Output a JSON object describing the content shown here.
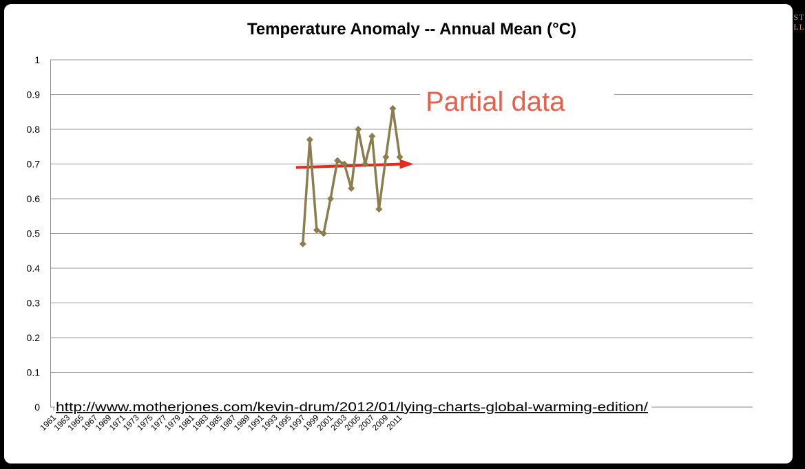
{
  "chart_data": {
    "type": "line",
    "title": "Temperature Anomaly -- Annual Mean (°C)",
    "xlabel": "",
    "ylabel": "",
    "ylim": [
      0,
      1
    ],
    "yticks": [
      "0",
      "0.1",
      "0.2",
      "0.3",
      "0.4",
      "0.5",
      "0.6",
      "0.7",
      "0.8",
      "0.9",
      "1"
    ],
    "categories": [
      "1961",
      "1962",
      "1963",
      "1964",
      "1965",
      "1966",
      "1967",
      "1968",
      "1969",
      "1970",
      "1971",
      "1972",
      "1973",
      "1974",
      "1975",
      "1976",
      "1977",
      "1978",
      "1979",
      "1980",
      "1981",
      "1982",
      "1983",
      "1984",
      "1985",
      "1986",
      "1987",
      "1988",
      "1989",
      "1990",
      "1991",
      "1992",
      "1993",
      "1994",
      "1995",
      "1996",
      "1997",
      "1998",
      "1999",
      "2000",
      "2001",
      "2002",
      "2003",
      "2004",
      "2005",
      "2006",
      "2007",
      "2008",
      "2009",
      "2010",
      "2011"
    ],
    "series": [
      {
        "name": "Temperature Anomaly",
        "color": "#8b7d4e",
        "x": [
          1997,
          1998,
          1999,
          2000,
          2001,
          2002,
          2003,
          2004,
          2005,
          2006,
          2007,
          2008,
          2009,
          2010,
          2011
        ],
        "values": [
          0.47,
          0.77,
          0.51,
          0.5,
          0.6,
          0.71,
          0.7,
          0.63,
          0.8,
          0.7,
          0.78,
          0.57,
          0.72,
          0.86,
          0.72
        ]
      }
    ],
    "trend_arrow": {
      "color": "#e8281c",
      "from": [
        1996,
        0.69
      ],
      "to": [
        2013,
        0.7
      ]
    },
    "grid": true
  },
  "annotation": {
    "text": "Partial data",
    "color": "#e8604c"
  },
  "source_url": "http://www.motherjones.com/kevin-drum/2012/01/lying-charts-global-warming-edition/",
  "corner_text": {
    "line1": "ST",
    "line2": "LL",
    "color": "#caa060"
  }
}
